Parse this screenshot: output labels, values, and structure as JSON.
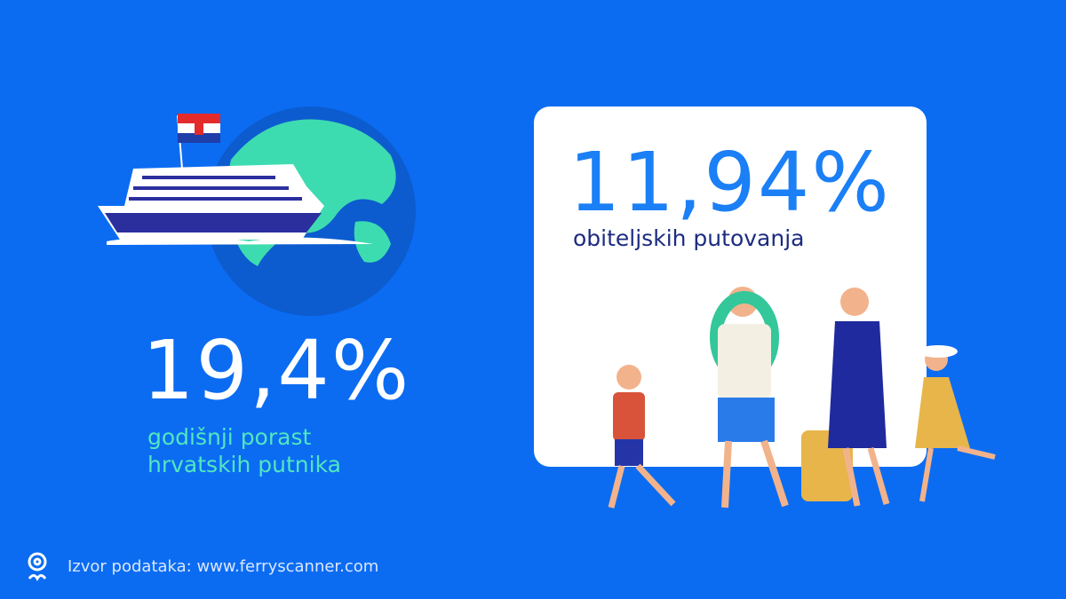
{
  "left_stat": {
    "value": "19,4%",
    "label_lines": [
      "godišnji porast",
      "hrvatskih putnika"
    ]
  },
  "card_stat": {
    "value": "11,94%",
    "label": "obiteljskih putovanja"
  },
  "footer": {
    "source": "Izvor podataka: www.ferryscanner.com"
  }
}
